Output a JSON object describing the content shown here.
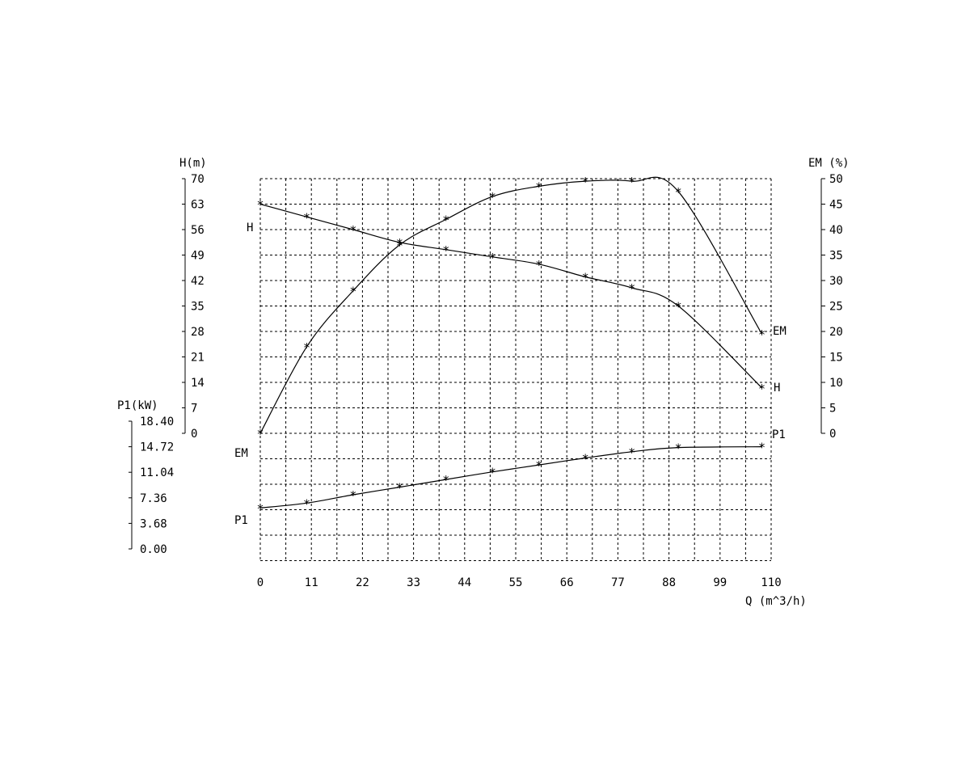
{
  "chart_data": {
    "type": "line",
    "x_axis": {
      "label": "Q (m^3/h)",
      "range": [
        0,
        110
      ],
      "ticks": [
        "0",
        "11",
        "22",
        "33",
        "44",
        "55",
        "66",
        "77",
        "88",
        "99",
        "110"
      ]
    },
    "left_axis_h": {
      "label": "H(m)",
      "range": [
        0,
        70
      ],
      "ticks": [
        "0",
        "7",
        "14",
        "21",
        "28",
        "35",
        "42",
        "49",
        "56",
        "63",
        "70"
      ]
    },
    "left_axis_p1": {
      "label": "P1(kW)",
      "range": [
        0,
        18.4
      ],
      "ticks": [
        "0.00",
        "3.68",
        "7.36",
        "11.04",
        "14.72",
        "18.40"
      ]
    },
    "right_axis_em": {
      "label": "EM (%)",
      "range": [
        0,
        50
      ],
      "ticks": [
        "0",
        "5",
        "10",
        "15",
        "20",
        "25",
        "30",
        "35",
        "40",
        "45",
        "50"
      ]
    },
    "series": [
      {
        "name": "H",
        "axis": "H",
        "x": [
          0,
          10,
          20,
          30,
          40,
          50,
          60,
          70,
          80,
          90,
          108
        ],
        "values": [
          63,
          59.5,
          56,
          52.5,
          50.5,
          48.5,
          46.5,
          43,
          40,
          35,
          12.5
        ]
      },
      {
        "name": "EM",
        "axis": "EM",
        "x": [
          0,
          10,
          20,
          30,
          40,
          50,
          60,
          70,
          80,
          90,
          108
        ],
        "values": [
          0,
          17,
          28,
          37,
          42,
          46.5,
          48.5,
          49.5,
          49.5,
          47.5,
          19.5
        ]
      },
      {
        "name": "P1",
        "axis": "P1",
        "x": [
          0,
          10,
          20,
          30,
          40,
          50,
          60,
          70,
          80,
          90,
          108
        ],
        "values": [
          5.9,
          6.6,
          7.8,
          8.9,
          10.0,
          11.1,
          12.1,
          13.1,
          14.0,
          14.6,
          14.72
        ]
      }
    ],
    "curve_labels": {
      "h_left": "H",
      "h_right": "H",
      "em_left": "EM",
      "em_right": "EM",
      "p1_left": "P1",
      "p1_right": "P1"
    },
    "grid": true,
    "marker": "*"
  }
}
